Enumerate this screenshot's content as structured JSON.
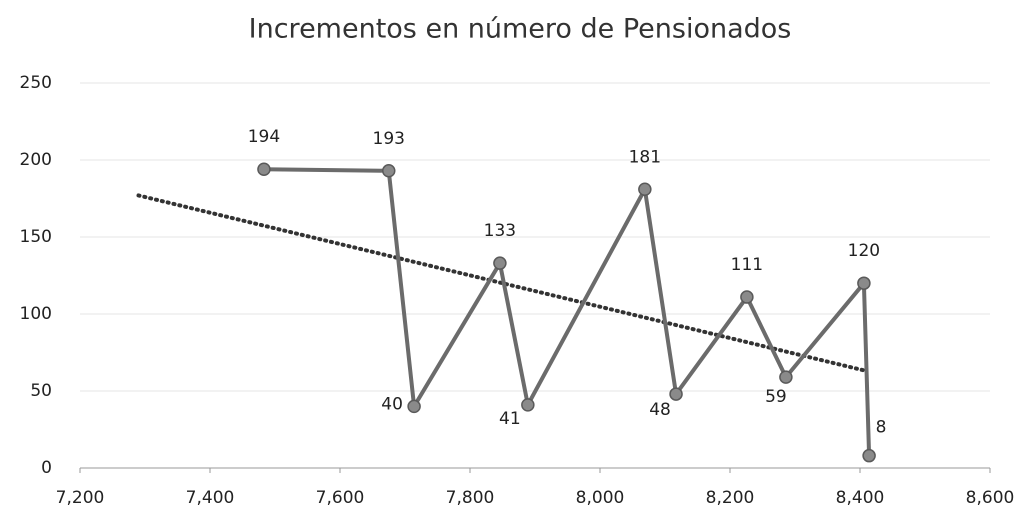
{
  "chart_data": {
    "type": "line",
    "title": "Incrementos en número de Pensionados",
    "x": [
      7483,
      7675,
      7714,
      7846,
      7889,
      8069,
      8117,
      8226,
      8286,
      8406,
      8414
    ],
    "series": [
      {
        "color": "#6b6b6b",
        "values": [
          194,
          193,
          40,
          133,
          41,
          181,
          48,
          111,
          59,
          120,
          8
        ]
      }
    ],
    "trendline": {
      "x": [
        7290,
        8410
      ],
      "values": [
        177,
        63
      ],
      "color": "#333333",
      "style": "dotted"
    },
    "xlim": [
      7200,
      8600
    ],
    "xticks": [
      {
        "value": 7200,
        "label": "7,200"
      },
      {
        "value": 7400,
        "label": "7,400"
      },
      {
        "value": 7600,
        "label": "7,600"
      },
      {
        "value": 7800,
        "label": "7,800"
      },
      {
        "value": 8000,
        "label": "8,000"
      },
      {
        "value": 8200,
        "label": "8,200"
      },
      {
        "value": 8400,
        "label": "8,400"
      },
      {
        "value": 8600,
        "label": "8,600"
      }
    ],
    "ylim": [
      0,
      250
    ],
    "yticks": [
      0,
      50,
      100,
      150,
      200,
      250
    ],
    "grid": true,
    "data_labels": true
  }
}
